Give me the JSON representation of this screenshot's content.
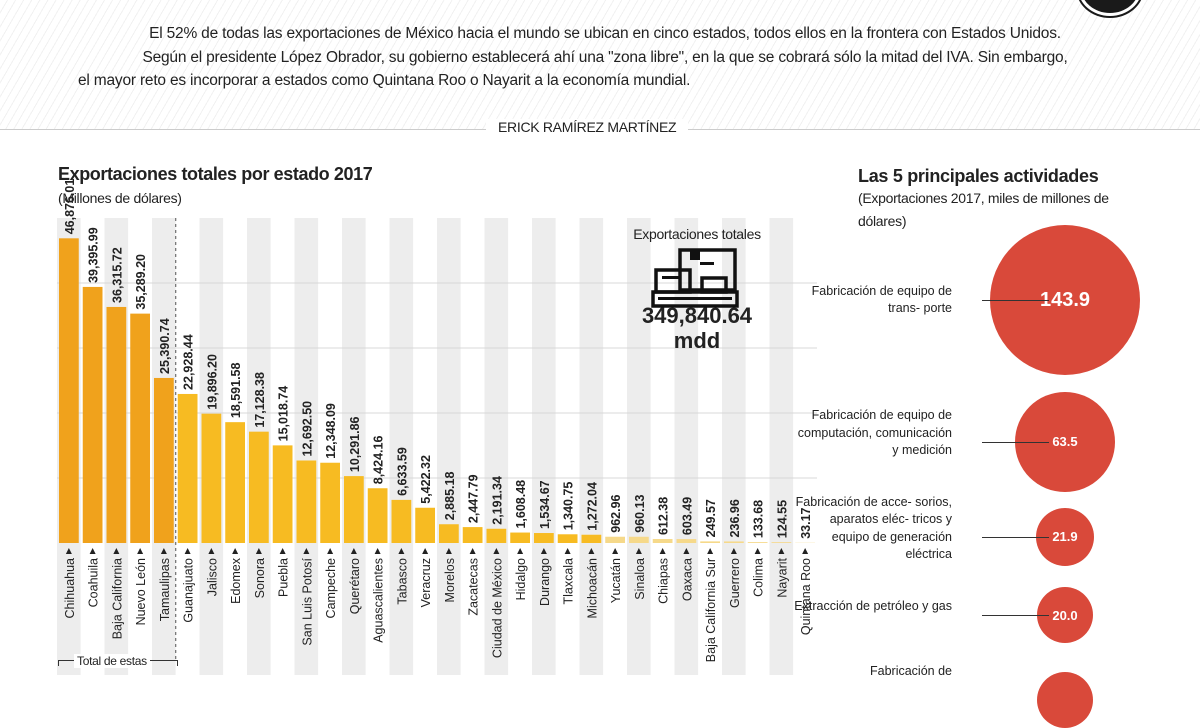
{
  "intro": {
    "line1": "El 52% de todas las exportaciones de México hacia el mundo se ubican en cinco estados, todos ellos en la frontera con Estados Unidos.",
    "line2": "Según el presidente López Obrador, su gobierno establecerá ahí una \"zona libre\", en la que se cobrará sólo la mitad del IVA. Sin embargo,",
    "line3": "el mayor reto es incorporar a estados como Quintana Roo o Nayarit a la economía mundial."
  },
  "byline": "ERICK RAMÍREZ MARTÍNEZ",
  "chart_data": [
    {
      "type": "bar",
      "title": "Exportaciones totales por estado 2017",
      "subtitle": "(Millones de dólares)",
      "categories": [
        "Chihuahua",
        "Coahuila",
        "Baja California",
        "Nuevo León",
        "Tamaulipas",
        "Guanajuato",
        "Jalisco",
        "Edomex",
        "Sonora",
        "Puebla",
        "San Luis Potosí",
        "Campeche",
        "Querétaro",
        "Aguascalientes",
        "Tabasco",
        "Veracruz",
        "Morelos",
        "Zacatecas",
        "Ciudad de México",
        "Hidalgo",
        "Durango",
        "Tlaxcala",
        "Michoacán",
        "Yucatán",
        "Sinaloa",
        "Chiapas",
        "Oaxaca",
        "Baja California Sur",
        "Guerrero",
        "Colima",
        "Nayarit",
        "Quintana Roo"
      ],
      "values": [
        46876.01,
        39395.99,
        36315.72,
        35289.2,
        25390.74,
        22928.44,
        19896.2,
        18591.58,
        17128.38,
        15018.74,
        12692.5,
        12348.09,
        10291.86,
        8424.16,
        6633.59,
        5422.32,
        2885.18,
        2447.79,
        2191.34,
        1608.48,
        1534.67,
        1340.75,
        1272.04,
        962.96,
        960.13,
        612.38,
        603.49,
        249.57,
        236.96,
        133.68,
        124.55,
        33.17
      ],
      "data_labels": [
        "46,876.01",
        "39,395.99",
        "36,315.72",
        "35,289.20",
        "25,390.74",
        "22,928.44",
        "19,896.20",
        "18,591.58",
        "17,128.38",
        "15,018.74",
        "12,692.50",
        "12,348.09",
        "10,291.86",
        "8,424.16",
        "6,633.59",
        "5,422.32",
        "2,885.18",
        "2,447.79",
        "2,191.34",
        "1,608.48",
        "1,534.67",
        "1,340.75",
        "1,272.04",
        "962.96",
        "960.13",
        "612.38",
        "603.49",
        "249.57",
        "236.96",
        "133.68",
        "124.55",
        "33.17"
      ],
      "ylim": [
        0,
        50000
      ],
      "grid": true,
      "group_annotation": "Total de estas",
      "total": {
        "label": "Exportaciones totales",
        "value": "349,840.64",
        "unit": "mdd"
      },
      "colors": {
        "top5": "#f0a21c",
        "rest": "#f7bb22",
        "small": "#f6d98a"
      }
    },
    {
      "type": "bubble",
      "title": "Las 5 principales actividades",
      "subtitle": "(Exportaciones 2017,  miles de millones de dólares)",
      "items": [
        {
          "label": "Fabricación de equipo de trans- porte",
          "value": 143.9,
          "value_label": "143.9"
        },
        {
          "label": "Fabricación de equipo de computación, comunicación y medición",
          "value": 63.5,
          "value_label": "63.5"
        },
        {
          "label": "Fabricación de acce- sorios, aparatos eléc- tricos y equipo de generación eléctrica",
          "value": 21.9,
          "value_label": "21.9"
        },
        {
          "label": "Extracción de petróleo y gas",
          "value": 20.0,
          "value_label": "20.0"
        },
        {
          "label": "Fabricación de"
        }
      ],
      "color": "#d9493a"
    }
  ]
}
